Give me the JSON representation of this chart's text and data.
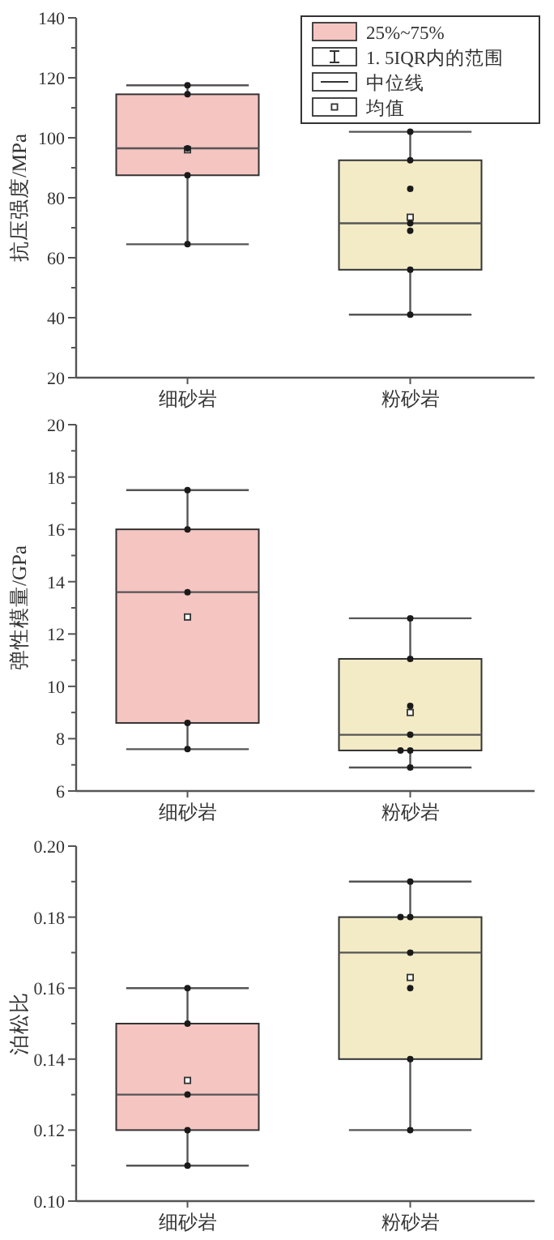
{
  "chart_data": [
    {
      "type": "box",
      "ylabel": "抗压强度/MPa",
      "categories": [
        "细砂岩",
        "粉砂岩"
      ],
      "ylim": [
        20,
        140
      ],
      "yticks": [
        20,
        {
          "value": 30,
          "label": null
        },
        40,
        {
          "value": 50,
          "label": null
        },
        60,
        {
          "value": 70,
          "label": null
        },
        80,
        {
          "value": 90,
          "label": null
        },
        100,
        {
          "value": 110,
          "label": null
        },
        120,
        {
          "value": 130,
          "label": null
        },
        140
      ],
      "legend": "top right",
      "series": [
        {
          "name": "25%~75%",
          "colors": [
            "#f5c5c2",
            "#f2ebc6"
          ],
          "boxes": [
            {
              "low": 64.5,
              "q1": 87.5,
              "median": 96.5,
              "q3": 114.5,
              "high": 117.5,
              "mean": 96
            },
            {
              "low": 41,
              "q1": 56,
              "median": 71.5,
              "q3": 92.5,
              "high": 102,
              "mean": 73.5
            }
          ]
        },
        {
          "type": "scatter",
          "color": "#1a1a1a",
          "marker": "circle",
          "x": [
            "细砂岩",
            "细砂岩",
            "细砂岩",
            "细砂岩",
            "细砂岩",
            "粉砂岩",
            "粉砂岩",
            "粉砂岩",
            "粉砂岩",
            "粉砂岩",
            "粉砂岩",
            "粉砂岩"
          ],
          "values": [
            117.5,
            114.5,
            96.5,
            87.5,
            64.5,
            102,
            92.5,
            83,
            71.5,
            69,
            56,
            41
          ]
        }
      ],
      "annotations": [
        "1. 5IQR内的范围",
        "中位线",
        "均值"
      ]
    },
    {
      "type": "box",
      "ylabel": "弹性模量/GPa",
      "categories": [
        "细砂岩",
        "粉砂岩"
      ],
      "ylim": [
        6,
        20
      ],
      "yticks": [
        6,
        {
          "value": 7,
          "label": null
        },
        8,
        {
          "value": 9,
          "label": null
        },
        10,
        {
          "value": 11,
          "label": null
        },
        12,
        {
          "value": 13,
          "label": null
        },
        14,
        {
          "value": 15,
          "label": null
        },
        16,
        {
          "value": 17,
          "label": null
        },
        18,
        {
          "value": 19,
          "label": null
        },
        20
      ],
      "series": [
        {
          "colors": [
            "#f5c5c2",
            "#f2ebc6"
          ],
          "boxes": [
            {
              "low": 7.6,
              "q1": 8.6,
              "median": 13.6,
              "q3": 16,
              "high": 17.5,
              "mean": 12.65
            },
            {
              "low": 6.9,
              "q1": 7.55,
              "median": 8.15,
              "q3": 11.05,
              "high": 12.6,
              "mean": 9.0
            }
          ]
        },
        {
          "type": "scatter",
          "color": "#1a1a1a",
          "marker": "circle",
          "x": [
            "细砂岩",
            "细砂岩",
            "细砂岩",
            "细砂岩",
            "细砂岩",
            "粉砂岩",
            "粉砂岩",
            "粉砂岩",
            "粉砂岩",
            "粉砂岩",
            "粉砂岩",
            "粉砂岩"
          ],
          "values": [
            17.5,
            16,
            13.6,
            8.6,
            7.6,
            12.6,
            11.05,
            9.25,
            8.15,
            7.55,
            7.55,
            6.9
          ]
        }
      ]
    },
    {
      "type": "box",
      "ylabel": "泊松比",
      "categories": [
        "细砂岩",
        "粉砂岩"
      ],
      "ylim": [
        0.1,
        0.2
      ],
      "yticks": [
        {
          "value": 0.1,
          "label": "0.10"
        },
        {
          "value": 0.11,
          "label": null
        },
        {
          "value": 0.12,
          "label": "0.12"
        },
        {
          "value": 0.13,
          "label": null
        },
        {
          "value": 0.14,
          "label": "0.14"
        },
        {
          "value": 0.15,
          "label": null
        },
        {
          "value": 0.16,
          "label": "0.16"
        },
        {
          "value": 0.17,
          "label": null
        },
        {
          "value": 0.18,
          "label": "0.18"
        },
        {
          "value": 0.19,
          "label": null
        },
        {
          "value": 0.2,
          "label": "0.20"
        }
      ],
      "series": [
        {
          "colors": [
            "#f5c5c2",
            "#f2ebc6"
          ],
          "boxes": [
            {
              "low": 0.11,
              "q1": 0.12,
              "median": 0.13,
              "q3": 0.15,
              "high": 0.16,
              "mean": 0.134
            },
            {
              "low": 0.12,
              "q1": 0.14,
              "median": 0.17,
              "q3": 0.18,
              "high": 0.19,
              "mean": 0.163
            }
          ]
        },
        {
          "type": "scatter",
          "color": "#1a1a1a",
          "marker": "circle",
          "x": [
            "细砂岩",
            "细砂岩",
            "细砂岩",
            "细砂岩",
            "细砂岩",
            "粉砂岩",
            "粉砂岩",
            "粉砂岩",
            "粉砂岩",
            "粉砂岩",
            "粉砂岩",
            "粉砂岩"
          ],
          "values": [
            0.16,
            0.15,
            0.13,
            0.12,
            0.11,
            0.19,
            0.18,
            0.18,
            0.17,
            0.16,
            0.14,
            0.12
          ]
        }
      ]
    }
  ]
}
